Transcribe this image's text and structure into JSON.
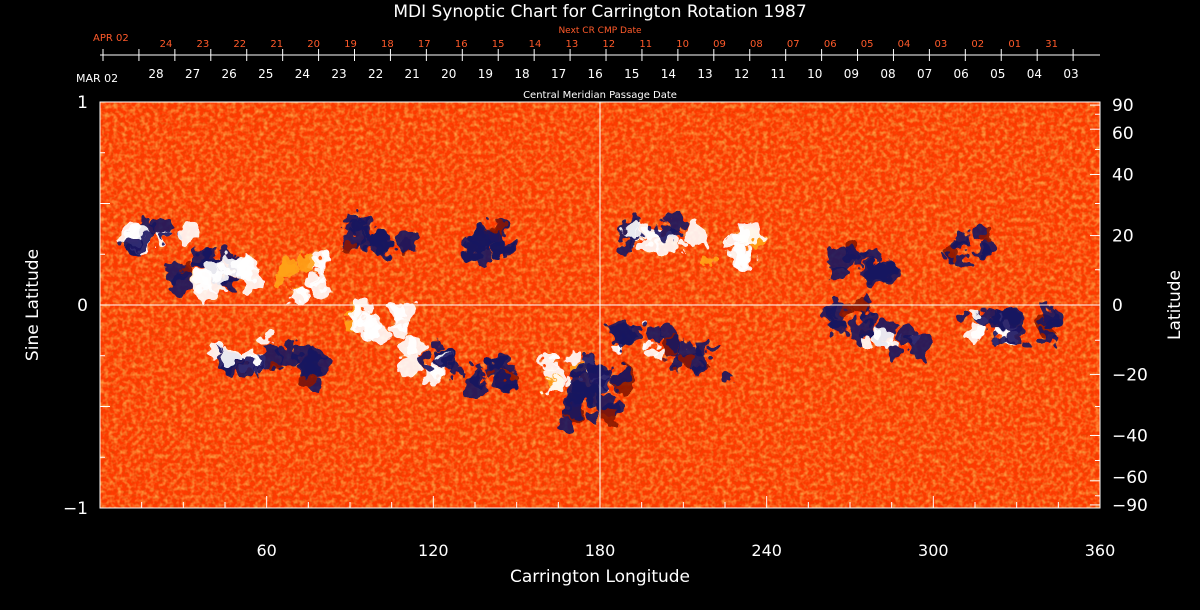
{
  "chart_data": {
    "type": "heatmap",
    "title": "MDI Synoptic Chart for Carrington Rotation 1987",
    "xlabel": "Carrington Longitude",
    "ylabel_left": "Sine Latitude",
    "ylabel_right": "Latitude",
    "xlim": [
      0,
      360
    ],
    "ylim": [
      -1,
      1
    ],
    "x_ticks": [
      60,
      120,
      180,
      240,
      300,
      360
    ],
    "y_ticks_left": [
      {
        "value": 1,
        "label": "1"
      },
      {
        "value": 0,
        "label": "0"
      },
      {
        "value": -1,
        "label": "−1"
      }
    ],
    "y_ticks_right": [
      {
        "deg": 90,
        "label": "90"
      },
      {
        "deg": 60,
        "label": "60"
      },
      {
        "deg": 40,
        "label": "40"
      },
      {
        "deg": 20,
        "label": "20"
      },
      {
        "deg": 0,
        "label": "0"
      },
      {
        "deg": -20,
        "label": "−20"
      },
      {
        "deg": -40,
        "label": "−40"
      },
      {
        "deg": -60,
        "label": "−60"
      },
      {
        "deg": -90,
        "label": "−90"
      }
    ],
    "cmp_axis_label": "Central Meridian Passage Date",
    "cmp_start_label": "MAR 02",
    "cmp_dates": [
      "28",
      "27",
      "26",
      "25",
      "24",
      "23",
      "22",
      "21",
      "20",
      "19",
      "18",
      "17",
      "16",
      "15",
      "14",
      "13",
      "12",
      "11",
      "10",
      "09",
      "08",
      "07",
      "06",
      "05",
      "04",
      "03"
    ],
    "next_cmp_axis_label": "Next CR CMP Date",
    "next_cmp_start_label": "APR 02",
    "next_cmp_dates": [
      "24",
      "23",
      "22",
      "21",
      "20",
      "19",
      "18",
      "17",
      "16",
      "15",
      "14",
      "13",
      "12",
      "11",
      "10",
      "09",
      "08",
      "07",
      "06",
      "05",
      "04",
      "03",
      "02",
      "01",
      "31"
    ],
    "colors": {
      "background": "#000000",
      "field_base": "#fe3a00",
      "positive_polarity": "#ffffff",
      "negative_polarity": "#1a1560",
      "mid_tone": "#ffa31a",
      "axis": "#ffffff",
      "next_cmp_text": "#ff5a2a"
    },
    "crosshair": {
      "longitude": 180,
      "sine_latitude": 0
    },
    "active_regions": [
      {
        "lon": 22,
        "sinlat": 0.33,
        "polarity": "mixed"
      },
      {
        "lon": 38,
        "sinlat": 0.19,
        "polarity": "negative"
      },
      {
        "lon": 45,
        "sinlat": 0.14,
        "polarity": "positive"
      },
      {
        "lon": 72,
        "sinlat": 0.13,
        "polarity": "positive"
      },
      {
        "lon": 100,
        "sinlat": 0.35,
        "polarity": "negative"
      },
      {
        "lon": 142,
        "sinlat": 0.32,
        "polarity": "negative"
      },
      {
        "lon": 200,
        "sinlat": 0.34,
        "polarity": "mixed"
      },
      {
        "lon": 225,
        "sinlat": 0.28,
        "polarity": "positive"
      },
      {
        "lon": 275,
        "sinlat": 0.22,
        "polarity": "negative"
      },
      {
        "lon": 310,
        "sinlat": 0.29,
        "polarity": "negative"
      },
      {
        "lon": 50,
        "sinlat": -0.25,
        "polarity": "mixed"
      },
      {
        "lon": 70,
        "sinlat": -0.32,
        "polarity": "negative"
      },
      {
        "lon": 100,
        "sinlat": -0.07,
        "polarity": "positive"
      },
      {
        "lon": 120,
        "sinlat": -0.28,
        "polarity": "mixed"
      },
      {
        "lon": 140,
        "sinlat": -0.35,
        "polarity": "negative"
      },
      {
        "lon": 170,
        "sinlat": -0.32,
        "polarity": "positive"
      },
      {
        "lon": 180,
        "sinlat": -0.37,
        "polarity": "negative"
      },
      {
        "lon": 195,
        "sinlat": -0.17,
        "polarity": "mixed"
      },
      {
        "lon": 215,
        "sinlat": -0.27,
        "polarity": "negative"
      },
      {
        "lon": 268,
        "sinlat": -0.06,
        "polarity": "negative"
      },
      {
        "lon": 285,
        "sinlat": -0.19,
        "polarity": "mixed"
      },
      {
        "lon": 318,
        "sinlat": -0.09,
        "polarity": "mixed"
      },
      {
        "lon": 335,
        "sinlat": -0.12,
        "polarity": "negative"
      },
      {
        "lon": 178,
        "sinlat": -0.52,
        "polarity": "negative"
      }
    ]
  }
}
